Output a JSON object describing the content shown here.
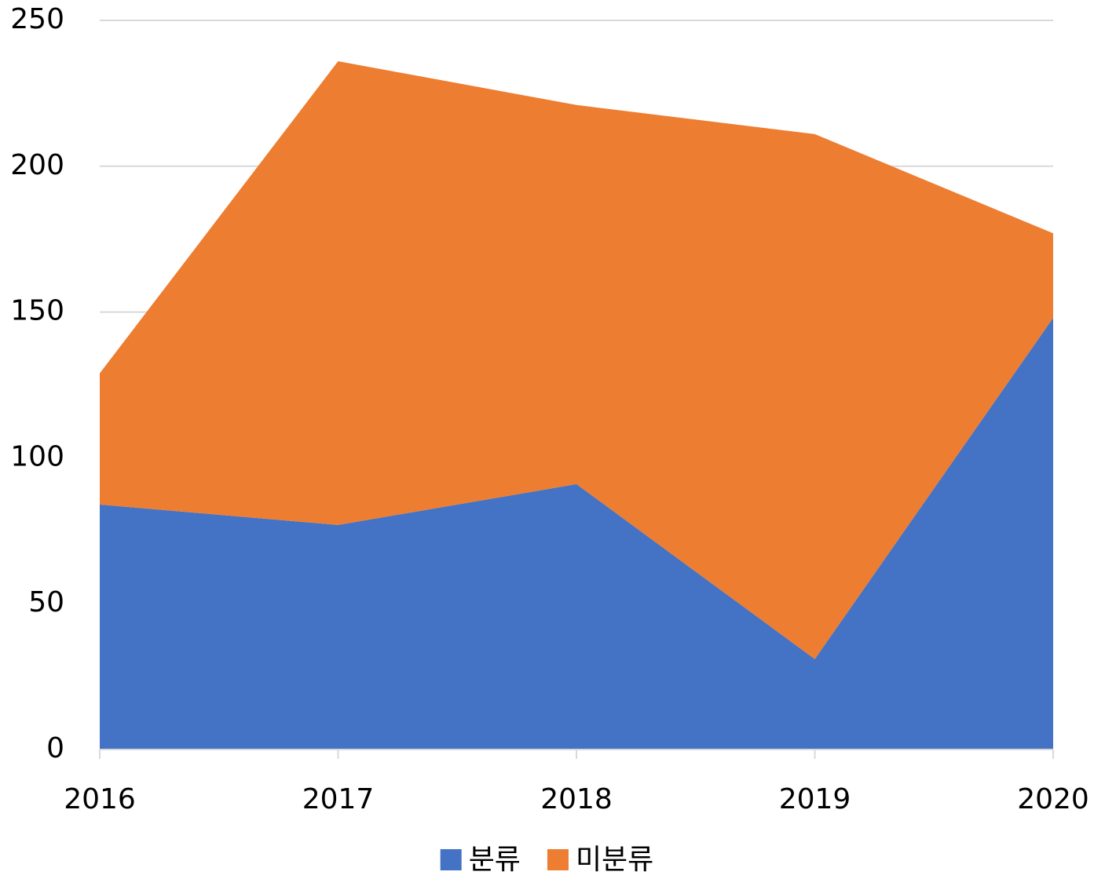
{
  "chart_data": {
    "type": "stacked-area",
    "categories": [
      "2016",
      "2017",
      "2018",
      "2019",
      "2020"
    ],
    "series": [
      {
        "name": "분류",
        "color": "#4472c4",
        "values": [
          84,
          77,
          91,
          31,
          148
        ]
      },
      {
        "name": "미분류",
        "color": "#ed7d31",
        "values": [
          45,
          159,
          130,
          180,
          29
        ]
      }
    ],
    "ylim": [
      0,
      250
    ],
    "yticks": [
      0,
      50,
      100,
      150,
      200,
      250
    ],
    "grid": true,
    "legend": "bottom"
  }
}
